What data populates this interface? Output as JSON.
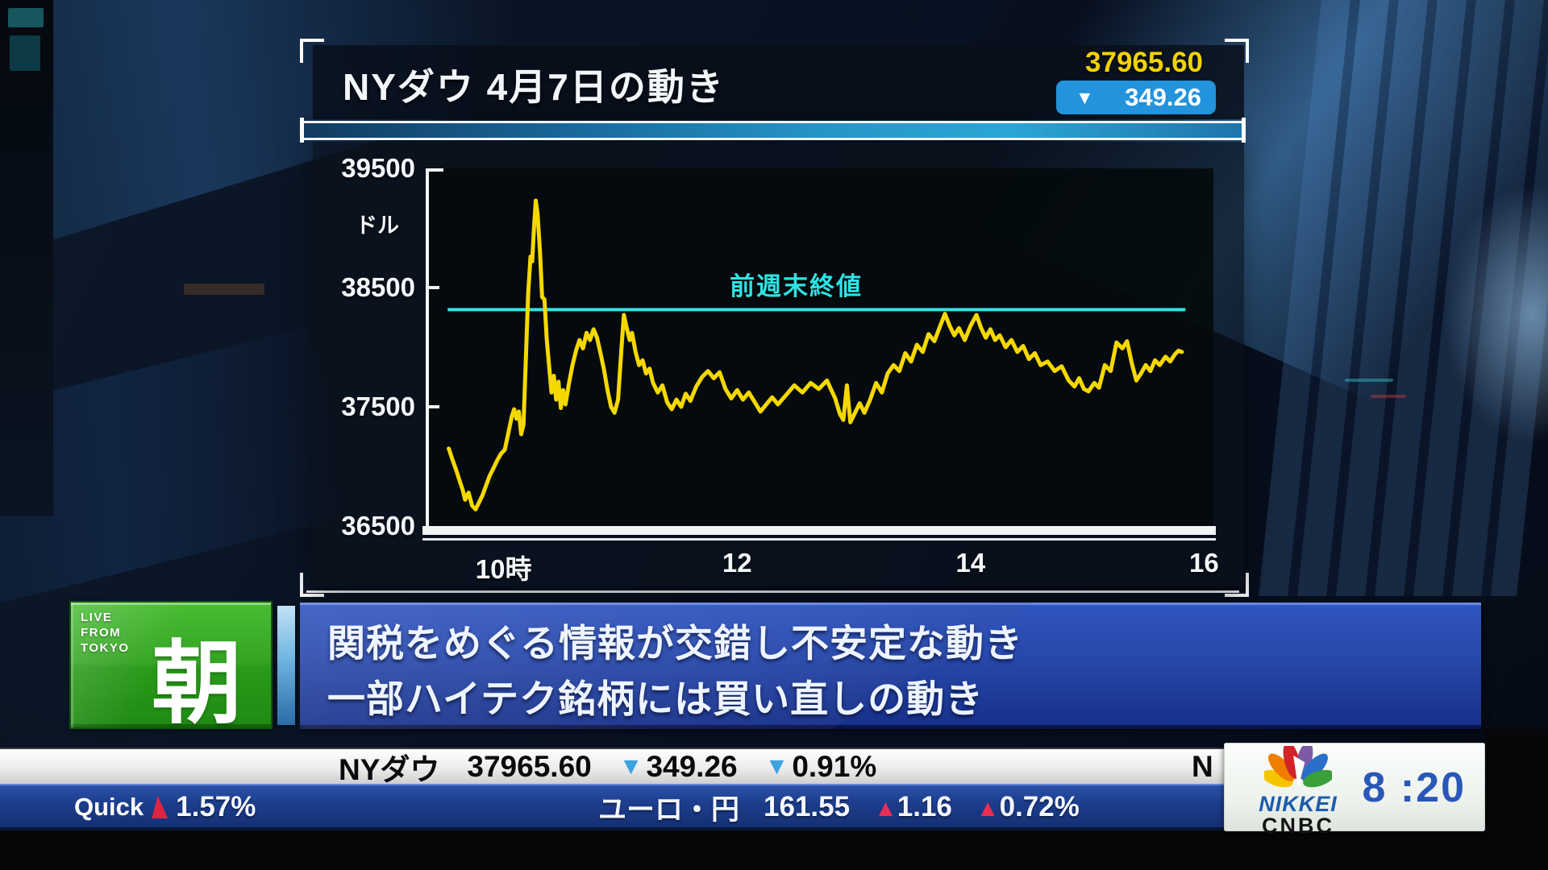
{
  "panel": {
    "title": "NYダウ 4月7日の動き",
    "price": "37965.60",
    "down_arrow": "▼",
    "change": "349.26"
  },
  "chart_data": {
    "type": "line",
    "title": "NYダウ 4月7日の動き",
    "ylabel": "ドル",
    "y_ticks": [
      "39500",
      "38500",
      "37500",
      "36500"
    ],
    "y_tick_values": [
      39500,
      38500,
      37500,
      36500
    ],
    "x_ticks": [
      "10時",
      "12",
      "14",
      "16"
    ],
    "x_tick_hours": [
      10,
      12,
      14,
      16
    ],
    "ylim": [
      36500,
      39500
    ],
    "xlim": [
      9.36,
      16.08
    ],
    "grid": false,
    "reference_line": {
      "label": "前週末終値",
      "value": 38315,
      "color": "#2ee4e4"
    },
    "series": [
      {
        "name": "NYダウ",
        "color": "#f5d800",
        "points": [
          [
            9.53,
            37150
          ],
          [
            9.56,
            37060
          ],
          [
            9.59,
            36980
          ],
          [
            9.62,
            36890
          ],
          [
            9.65,
            36800
          ],
          [
            9.67,
            36720
          ],
          [
            9.7,
            36780
          ],
          [
            9.73,
            36670
          ],
          [
            9.76,
            36640
          ],
          [
            9.79,
            36700
          ],
          [
            9.82,
            36760
          ],
          [
            9.85,
            36840
          ],
          [
            9.88,
            36920
          ],
          [
            9.92,
            37000
          ],
          [
            9.95,
            37060
          ],
          [
            9.98,
            37110
          ],
          [
            10.01,
            37140
          ],
          [
            10.04,
            37280
          ],
          [
            10.07,
            37420
          ],
          [
            10.09,
            37480
          ],
          [
            10.11,
            37400
          ],
          [
            10.13,
            37460
          ],
          [
            10.15,
            37270
          ],
          [
            10.17,
            37350
          ],
          [
            10.19,
            37900
          ],
          [
            10.21,
            38450
          ],
          [
            10.23,
            38760
          ],
          [
            10.245,
            38720
          ],
          [
            10.26,
            39000
          ],
          [
            10.275,
            39230
          ],
          [
            10.29,
            39120
          ],
          [
            10.31,
            38820
          ],
          [
            10.33,
            38420
          ],
          [
            10.35,
            38400
          ],
          [
            10.37,
            38060
          ],
          [
            10.39,
            37840
          ],
          [
            10.41,
            37620
          ],
          [
            10.43,
            37760
          ],
          [
            10.45,
            37560
          ],
          [
            10.47,
            37710
          ],
          [
            10.49,
            37490
          ],
          [
            10.51,
            37640
          ],
          [
            10.53,
            37520
          ],
          [
            10.56,
            37700
          ],
          [
            10.59,
            37850
          ],
          [
            10.62,
            37970
          ],
          [
            10.65,
            38060
          ],
          [
            10.68,
            37990
          ],
          [
            10.71,
            38120
          ],
          [
            10.74,
            38060
          ],
          [
            10.77,
            38150
          ],
          [
            10.8,
            38080
          ],
          [
            10.83,
            37950
          ],
          [
            10.86,
            37810
          ],
          [
            10.89,
            37640
          ],
          [
            10.92,
            37500
          ],
          [
            10.95,
            37450
          ],
          [
            10.98,
            37560
          ],
          [
            11.01,
            38000
          ],
          [
            11.03,
            38270
          ],
          [
            11.05,
            38180
          ],
          [
            11.08,
            38060
          ],
          [
            11.1,
            38120
          ],
          [
            11.13,
            37960
          ],
          [
            11.16,
            37850
          ],
          [
            11.19,
            37890
          ],
          [
            11.22,
            37780
          ],
          [
            11.25,
            37820
          ],
          [
            11.28,
            37700
          ],
          [
            11.32,
            37620
          ],
          [
            11.36,
            37680
          ],
          [
            11.4,
            37540
          ],
          [
            11.44,
            37480
          ],
          [
            11.48,
            37560
          ],
          [
            11.52,
            37500
          ],
          [
            11.56,
            37610
          ],
          [
            11.6,
            37550
          ],
          [
            11.65,
            37670
          ],
          [
            11.7,
            37750
          ],
          [
            11.75,
            37800
          ],
          [
            11.8,
            37740
          ],
          [
            11.85,
            37790
          ],
          [
            11.9,
            37650
          ],
          [
            11.95,
            37570
          ],
          [
            12.0,
            37640
          ],
          [
            12.05,
            37560
          ],
          [
            12.1,
            37620
          ],
          [
            12.15,
            37540
          ],
          [
            12.2,
            37460
          ],
          [
            12.25,
            37520
          ],
          [
            12.3,
            37580
          ],
          [
            12.35,
            37520
          ],
          [
            12.42,
            37600
          ],
          [
            12.49,
            37680
          ],
          [
            12.56,
            37620
          ],
          [
            12.63,
            37700
          ],
          [
            12.7,
            37650
          ],
          [
            12.77,
            37720
          ],
          [
            12.84,
            37570
          ],
          [
            12.88,
            37440
          ],
          [
            12.91,
            37390
          ],
          [
            12.94,
            37680
          ],
          [
            12.97,
            37370
          ],
          [
            13.01,
            37450
          ],
          [
            13.05,
            37530
          ],
          [
            13.09,
            37450
          ],
          [
            13.14,
            37560
          ],
          [
            13.19,
            37700
          ],
          [
            13.24,
            37620
          ],
          [
            13.29,
            37780
          ],
          [
            13.34,
            37850
          ],
          [
            13.39,
            37800
          ],
          [
            13.44,
            37950
          ],
          [
            13.49,
            37880
          ],
          [
            13.54,
            38020
          ],
          [
            13.59,
            37960
          ],
          [
            13.64,
            38110
          ],
          [
            13.69,
            38050
          ],
          [
            13.74,
            38180
          ],
          [
            13.78,
            38280
          ],
          [
            13.82,
            38180
          ],
          [
            13.86,
            38100
          ],
          [
            13.9,
            38160
          ],
          [
            13.95,
            38060
          ],
          [
            14.0,
            38180
          ],
          [
            14.05,
            38270
          ],
          [
            14.09,
            38160
          ],
          [
            14.13,
            38080
          ],
          [
            14.17,
            38150
          ],
          [
            14.21,
            38060
          ],
          [
            14.25,
            38100
          ],
          [
            14.3,
            38000
          ],
          [
            14.35,
            38060
          ],
          [
            14.4,
            37960
          ],
          [
            14.45,
            38010
          ],
          [
            14.5,
            37900
          ],
          [
            14.55,
            37950
          ],
          [
            14.6,
            37850
          ],
          [
            14.66,
            37880
          ],
          [
            14.72,
            37800
          ],
          [
            14.78,
            37840
          ],
          [
            14.84,
            37720
          ],
          [
            14.89,
            37670
          ],
          [
            14.93,
            37740
          ],
          [
            14.97,
            37650
          ],
          [
            15.01,
            37630
          ],
          [
            15.06,
            37700
          ],
          [
            15.1,
            37660
          ],
          [
            15.15,
            37850
          ],
          [
            15.2,
            37800
          ],
          [
            15.25,
            38040
          ],
          [
            15.3,
            37990
          ],
          [
            15.34,
            38050
          ],
          [
            15.38,
            37870
          ],
          [
            15.42,
            37720
          ],
          [
            15.46,
            37780
          ],
          [
            15.5,
            37850
          ],
          [
            15.54,
            37800
          ],
          [
            15.58,
            37890
          ],
          [
            15.62,
            37850
          ],
          [
            15.67,
            37920
          ],
          [
            15.71,
            37880
          ],
          [
            15.75,
            37940
          ],
          [
            15.78,
            37970
          ],
          [
            15.81,
            37960
          ]
        ]
      }
    ]
  },
  "live_badge": {
    "line1": "LIVE",
    "line2": "FROM",
    "line3": "TOKYO",
    "kanji": "朝"
  },
  "headline": {
    "line1": "関税をめぐる情報が交錯し不安定な動き",
    "line2": "一部ハイテク銘柄には買い直しの動き"
  },
  "ticker1": {
    "name": "NYダウ",
    "price": "37965.60",
    "down_arrow": "▼",
    "change": "349.26",
    "change_pct": "0.91%",
    "next_symbol": "N"
  },
  "ticker2": {
    "source": "Quick",
    "source_value": "1.57%",
    "pair": "ユーロ・円",
    "price": "161.55",
    "up_arrow": "▲",
    "change": "1.16",
    "change_pct": "0.72%"
  },
  "logo": {
    "brand_top": "NIKKEI",
    "brand_bottom": "CNBC",
    "time": "8 :20"
  },
  "colors": {
    "line_yellow": "#f5d800",
    "reference_cyan": "#2ee4e4",
    "price_yellow": "#f2d200",
    "badge_blue": "#2293dc",
    "headline_blue": "#2748ab",
    "live_green": "#35a423",
    "ticker_down_blue": "#3da2e0",
    "ticker_up_red": "#ea2e55",
    "time_blue": "#2a58b8"
  }
}
